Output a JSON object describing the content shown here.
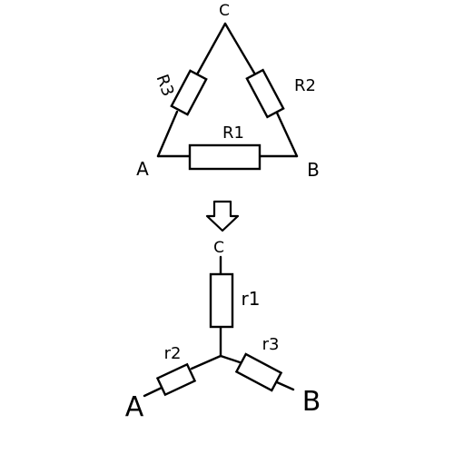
{
  "delta": {
    "nodes": {
      "a": "A",
      "b": "B",
      "c": "C"
    },
    "resistors": {
      "bottom": "R1",
      "right": "R2",
      "left": "R3"
    }
  },
  "star": {
    "nodes": {
      "a": "A",
      "b": "B",
      "c": "C"
    },
    "resistors": {
      "top": "r1",
      "left": "r2",
      "right": "r3"
    }
  },
  "colors": {
    "ink": "#000000",
    "background": "#ffffff"
  },
  "icons": {
    "transform_arrow": "down-arrow-icon"
  }
}
